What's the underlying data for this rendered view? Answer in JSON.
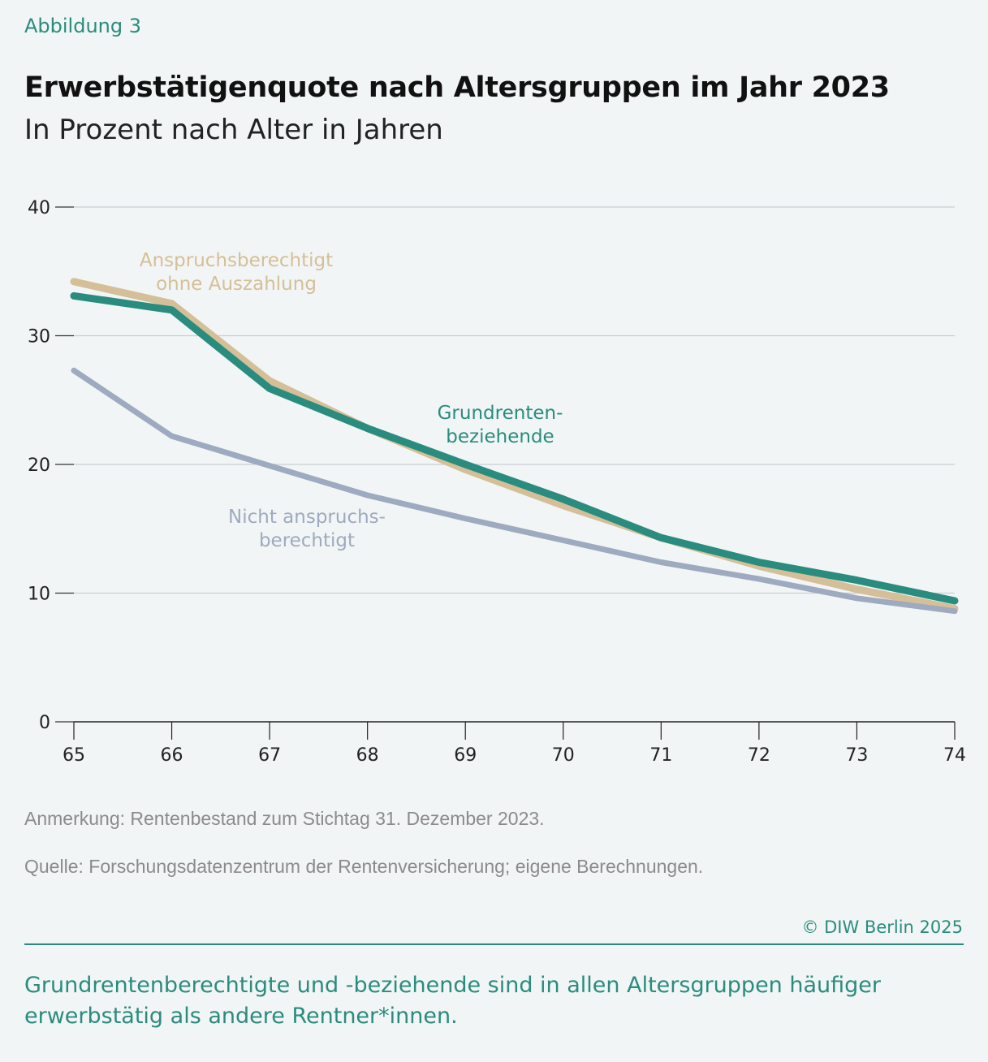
{
  "figure": {
    "kicker": "Abbildung 3",
    "title": "Erwerbstätigenquote nach Altersgruppen im Jahr 2023",
    "subtitle": "In Prozent nach Alter in Jahren"
  },
  "notes": {
    "anmerkung": "Anmerkung: Rentenbestand zum Stichtag 31. Dezember 2023.",
    "quelle": "Quelle: Forschungsdatenzentrum der Rentenversicherung; eigene Berechnungen.",
    "copyright": "© DIW Berlin 2025",
    "takeaway": "Grundrentenberechtigte und -beziehende sind in allen Altersgruppen häufiger erwerbstätig als andere Rentner*innen."
  },
  "chart_data": {
    "type": "line",
    "title": "Erwerbstätigenquote nach Altersgruppen im Jahr 2023",
    "subtitle": "In Prozent nach Alter in Jahren",
    "x": [
      65,
      66,
      67,
      68,
      69,
      70,
      71,
      72,
      73,
      74
    ],
    "x_ticks": [
      "65",
      "66",
      "67",
      "68",
      "69",
      "70",
      "71",
      "72",
      "73",
      "74"
    ],
    "y_ticks": [
      "0",
      "10",
      "20",
      "30",
      "40"
    ],
    "ylim": [
      0,
      40
    ],
    "grid": true,
    "series": [
      {
        "key": "anspruch",
        "label_lines": [
          "Anspruchsberechtigt",
          "ohne Auszahlung"
        ],
        "color": "#d4bf98",
        "values": [
          34.2,
          32.5,
          26.5,
          22.8,
          19.6,
          16.8,
          14.3,
          12.1,
          10.3,
          8.8
        ]
      },
      {
        "key": "grundrente",
        "label_lines": [
          "Grundrenten-",
          "beziehende"
        ],
        "color": "#2a8c7e",
        "values": [
          33.1,
          32.0,
          25.9,
          22.8,
          20.0,
          17.3,
          14.3,
          12.4,
          11.0,
          9.4
        ]
      },
      {
        "key": "nicht",
        "label_lines": [
          "Nicht anspruchs-",
          "berechtigt"
        ],
        "color": "#9eaabf",
        "values": [
          27.3,
          22.2,
          19.9,
          17.6,
          15.8,
          14.1,
          12.4,
          11.1,
          9.6,
          8.6
        ]
      }
    ]
  }
}
